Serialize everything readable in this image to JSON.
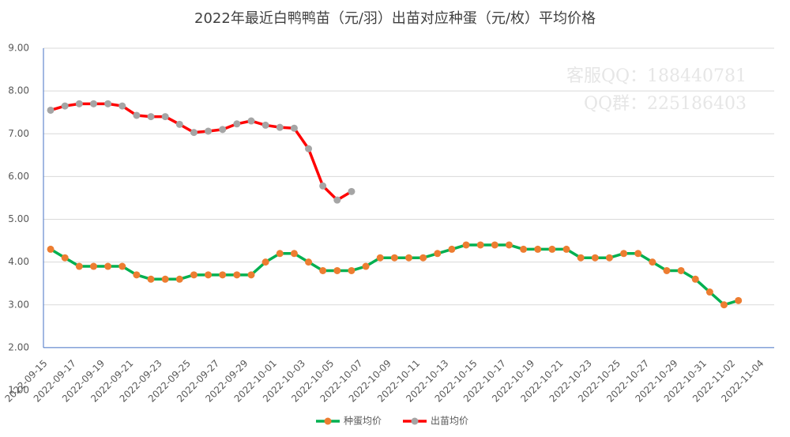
{
  "chart_data": {
    "type": "line",
    "title": "2022年最近白鸭鸭苗（元/羽）出苗对应种蛋（元/枚）平均价格",
    "annotations": [
      "客服QQ：188440781",
      "QQ群：225186403"
    ],
    "categories": [
      "2022-09-15",
      null,
      "2022-09-17",
      null,
      "2022-09-19",
      null,
      "2022-09-21",
      null,
      "2022-09-23",
      null,
      "2022-09-25",
      null,
      "2022-09-27",
      null,
      "2022-09-29",
      null,
      "2022-10-01",
      null,
      "2022-10-03",
      null,
      "2022-10-05",
      null,
      "2022-10-07",
      null,
      "2022-10-09",
      null,
      "2022-10-11",
      null,
      "2022-10-13",
      null,
      "2022-10-15",
      null,
      "2022-10-17",
      null,
      "2022-10-19",
      null,
      "2022-10-21",
      null,
      "2022-10-23",
      null,
      "2022-10-25",
      null,
      "2022-10-27",
      null,
      "2022-10-29",
      null,
      "2022-10-31",
      null,
      "2022-11-02",
      null,
      "2022-11-04"
    ],
    "series": [
      {
        "name": "种蛋均价",
        "color": "#00b050",
        "marker_color": "#ed7d31",
        "values": [
          4.3,
          4.1,
          3.9,
          3.9,
          3.9,
          3.9,
          3.7,
          3.6,
          3.6,
          3.6,
          3.7,
          3.7,
          3.7,
          3.7,
          3.7,
          4.0,
          4.2,
          4.2,
          4.0,
          3.8,
          3.8,
          3.8,
          3.9,
          4.1,
          4.1,
          4.1,
          4.1,
          4.2,
          4.3,
          4.4,
          4.4,
          4.4,
          4.4,
          4.3,
          4.3,
          4.3,
          4.3,
          4.1,
          4.1,
          4.1,
          4.2,
          4.2,
          4.0,
          3.8,
          3.8,
          3.6,
          3.3,
          3.0,
          3.1,
          null,
          null
        ]
      },
      {
        "name": "出苗均价",
        "color": "#ff0000",
        "marker_color": "#a5a5a5",
        "values": [
          7.55,
          7.65,
          7.7,
          7.7,
          7.7,
          7.65,
          7.43,
          7.4,
          7.4,
          7.22,
          7.03,
          7.06,
          7.1,
          7.23,
          7.3,
          7.2,
          7.15,
          7.13,
          6.65,
          5.78,
          5.45,
          5.65,
          null,
          null,
          null,
          null,
          null,
          null,
          null,
          null,
          null,
          null,
          null,
          null,
          null,
          null,
          null,
          null,
          null,
          null,
          null,
          null,
          null,
          null,
          null,
          null,
          null,
          null,
          null,
          null,
          null
        ]
      }
    ],
    "ylim": [
      1,
      9
    ],
    "yticks": [
      {
        "value": 1,
        "label": "1.00"
      },
      {
        "value": 2,
        "label": "2.00"
      },
      {
        "value": 3,
        "label": "3.00"
      },
      {
        "value": 4,
        "label": "4.00"
      },
      {
        "value": 5,
        "label": "5.00"
      },
      {
        "value": 6,
        "label": "6.00"
      },
      {
        "value": 7,
        "label": "7.00"
      },
      {
        "value": 8,
        "label": "8.00"
      },
      {
        "value": 9,
        "label": "9.00"
      }
    ],
    "xaxis_crosses": 2,
    "grid": true,
    "legend": "bottom"
  }
}
